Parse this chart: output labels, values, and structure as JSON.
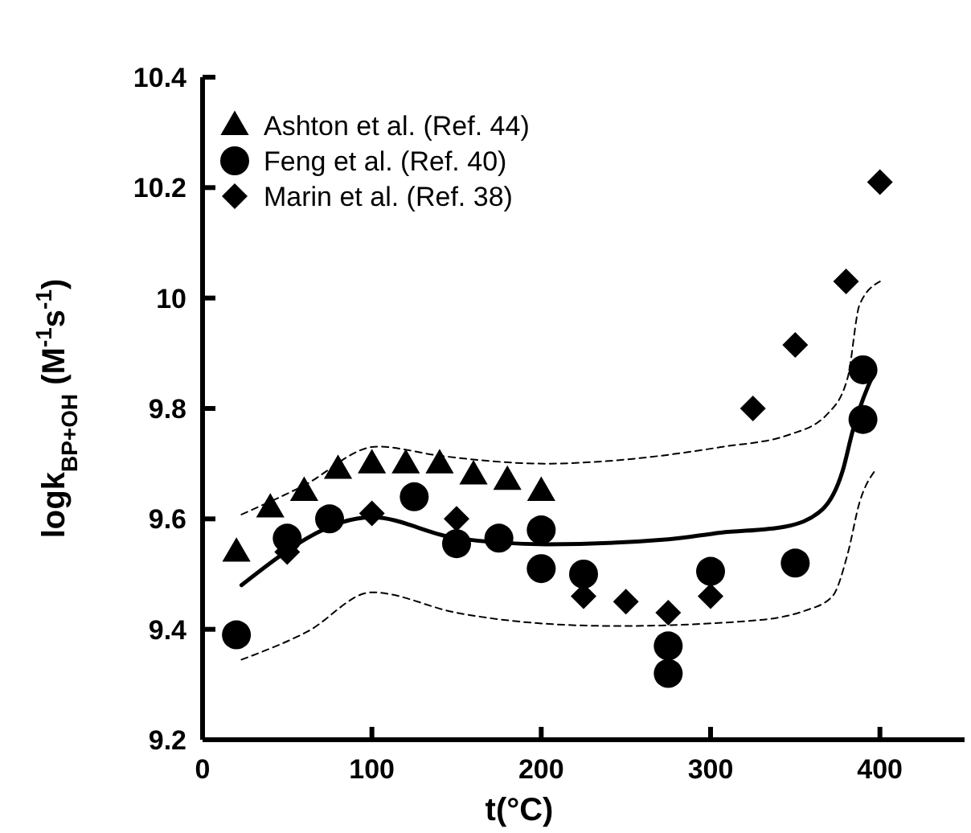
{
  "chart_data": {
    "type": "scatter",
    "xlabel": "t(°C)",
    "ylabel": "logk$_{BP+OH}$ (M$^{-1}$s$^{-1}$)",
    "xlim": [
      0,
      450
    ],
    "xticks": [
      0,
      100,
      200,
      300,
      400
    ],
    "ylim": [
      9.2,
      10.4
    ],
    "yticks": [
      9.2,
      9.4,
      9.6,
      9.8,
      {
        "value": 10,
        "label": "10"
      },
      10.2,
      10.4
    ],
    "grid": false,
    "legend": "top left",
    "series": [
      {
        "name": "Ashton et al. (Ref. 44)",
        "marker": "triangle",
        "color": "#000000",
        "x": [
          20,
          40,
          60,
          80,
          100,
          120,
          140,
          160,
          180,
          200
        ],
        "values": [
          9.54,
          9.62,
          9.65,
          9.69,
          9.7,
          9.7,
          9.7,
          9.68,
          9.67,
          9.65
        ]
      },
      {
        "name": "Feng et al. (Ref. 40)",
        "marker": "circle",
        "color": "#000000",
        "x": [
          20,
          50,
          75,
          125,
          150,
          175,
          200,
          200,
          225,
          275,
          275,
          300,
          350,
          390,
          390
        ],
        "values": [
          9.39,
          9.565,
          9.6,
          9.64,
          9.555,
          9.565,
          9.58,
          9.51,
          9.5,
          9.37,
          9.32,
          9.505,
          9.52,
          9.78,
          9.87
        ]
      },
      {
        "name": "Marin et al. (Ref. 38)",
        "marker": "diamond",
        "color": "#000000",
        "x": [
          50,
          100,
          150,
          225,
          250,
          275,
          300,
          325,
          350,
          380,
          400
        ],
        "values": [
          9.54,
          9.61,
          9.6,
          9.46,
          9.45,
          9.43,
          9.46,
          9.8,
          9.915,
          10.03,
          10.21
        ]
      },
      {
        "type": "line",
        "line_style": "solid",
        "color": "#000000",
        "x": [
          23,
          100,
          150,
          203,
          275,
          306,
          344,
          366,
          378,
          384,
          393,
          397
        ],
        "values": [
          9.48,
          9.603,
          9.565,
          9.554,
          9.563,
          9.575,
          9.586,
          9.617,
          9.687,
          9.76,
          9.84,
          9.866
        ]
      },
      {
        "type": "line",
        "line_style": "dashed",
        "color": "#000000",
        "x": [
          23,
          59,
          103,
          141,
          203,
          244,
          306,
          347,
          369,
          381,
          388,
          400
        ],
        "values": [
          9.608,
          9.659,
          9.731,
          9.714,
          9.7,
          9.706,
          9.73,
          9.753,
          9.79,
          9.856,
          9.988,
          10.03
        ]
      },
      {
        "type": "line",
        "line_style": "dashed",
        "color": "#000000",
        "x": [
          23,
          62,
          100,
          150,
          203,
          244,
          322,
          356,
          372,
          381,
          388,
          397
        ],
        "values": [
          9.345,
          9.396,
          9.467,
          9.43,
          9.41,
          9.406,
          9.415,
          9.434,
          9.46,
          9.537,
          9.63,
          9.687
        ]
      }
    ]
  }
}
